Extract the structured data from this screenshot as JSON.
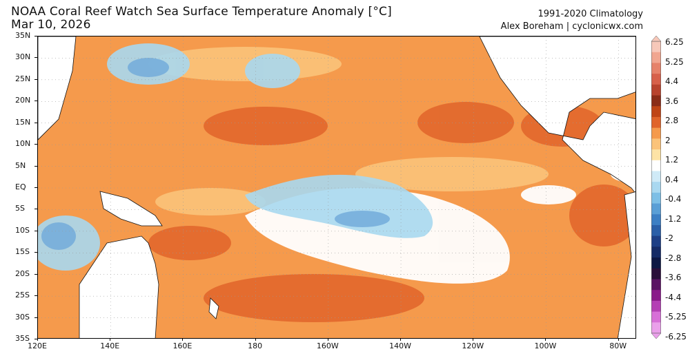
{
  "header": {
    "title": "NOAA Coral Reef Watch Sea Surface Temperature Anomaly [°C]",
    "date": "Mar 10, 2026",
    "climatology": "1991-2020 Climatology",
    "credit": "Alex Boreham | cyclonicwx.com"
  },
  "map": {
    "lon_range": [
      120,
      285
    ],
    "lat_range": [
      -35,
      35
    ],
    "lat_ticks": [
      {
        "value": 35,
        "label": "35N"
      },
      {
        "value": 30,
        "label": "30N"
      },
      {
        "value": 25,
        "label": "25N"
      },
      {
        "value": 20,
        "label": "20N"
      },
      {
        "value": 15,
        "label": "15N"
      },
      {
        "value": 10,
        "label": "10N"
      },
      {
        "value": 5,
        "label": "5N"
      },
      {
        "value": 0,
        "label": "EQ"
      },
      {
        "value": -5,
        "label": "5S"
      },
      {
        "value": -10,
        "label": "10S"
      },
      {
        "value": -15,
        "label": "15S"
      },
      {
        "value": -20,
        "label": "20S"
      },
      {
        "value": -25,
        "label": "25S"
      },
      {
        "value": -30,
        "label": "30S"
      },
      {
        "value": -35,
        "label": "35S"
      }
    ],
    "lon_ticks": [
      {
        "value": 120,
        "label": "120E"
      },
      {
        "value": 140,
        "label": "140E"
      },
      {
        "value": 160,
        "label": "160E"
      },
      {
        "value": 180,
        "label": "180"
      },
      {
        "value": 200,
        "label": "160W"
      },
      {
        "value": 220,
        "label": "140W"
      },
      {
        "value": 240,
        "label": "120W"
      },
      {
        "value": 260,
        "label": "100W"
      },
      {
        "value": 280,
        "label": "80W"
      }
    ],
    "ocean_color": "#f4a460",
    "land_color": "#ffffff",
    "warm_strong_color": "#e0642a",
    "warm_mid_color": "#f59a4c",
    "warm_light_color": "#fbc37a",
    "neutral_color": "#ffffff",
    "cool_light_color": "#a9d8f0",
    "cool_mid_color": "#6fa9da"
  },
  "colorbar": {
    "labels": [
      "6.25",
      "5.25",
      "4.4",
      "3.6",
      "2.8",
      "2",
      "1.2",
      "0.4",
      "-0.4",
      "-1.2",
      "-2",
      "-2.8",
      "-3.6",
      "-4.4",
      "-5.25",
      "-6.25"
    ],
    "colors": [
      "#f7c8b9",
      "#f1a690",
      "#e6826a",
      "#d7604a",
      "#b8432e",
      "#8a2c18",
      "#bf4416",
      "#e0642a",
      "#f59a4c",
      "#fbc37a",
      "#fde3a6",
      "#ffffff",
      "#cfeaf7",
      "#a9d8f0",
      "#7dbfe6",
      "#5a9fd6",
      "#3c7fc4",
      "#2a5fa8",
      "#1d3f86",
      "#152b66",
      "#0d1844",
      "#2a0f3a",
      "#5a1463",
      "#8a1a8a",
      "#b43fb4",
      "#d76fd7",
      "#eaa0ea"
    ]
  }
}
